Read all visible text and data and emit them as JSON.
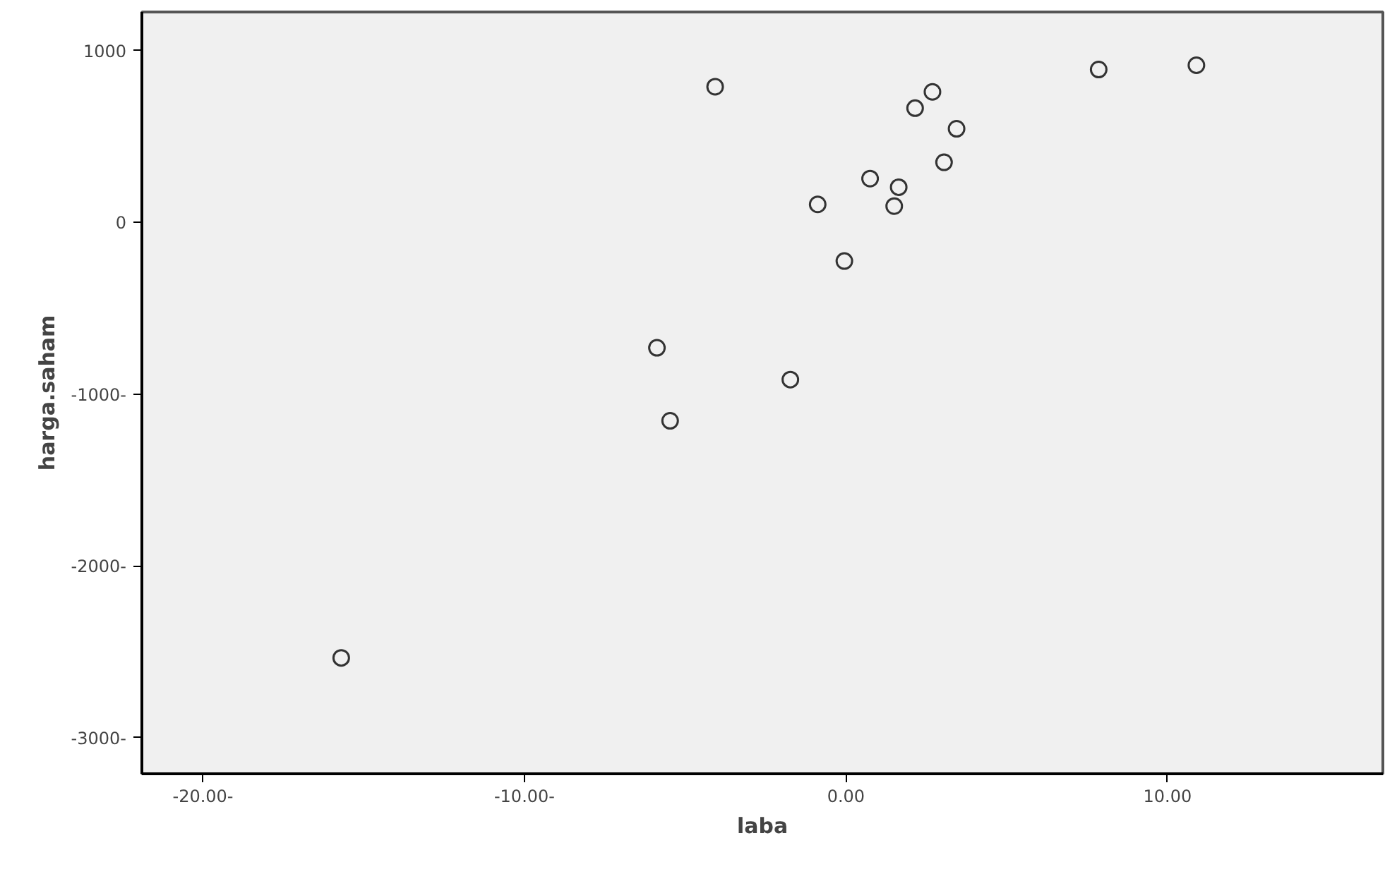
{
  "chart_data": {
    "type": "scatter",
    "xlabel": "laba",
    "ylabel": "harga.saham",
    "x": [
      -4.07,
      2.69,
      2.15,
      3.44,
      3.05,
      0.75,
      1.64,
      1.5,
      -0.88,
      -0.05,
      -5.88,
      -1.73,
      -5.47,
      7.86,
      10.9,
      -15.7
    ],
    "series": [
      {
        "color": "#333333",
        "values": [
          790,
          760,
          665,
          545,
          350,
          255,
          205,
          95,
          105,
          -225,
          -730,
          -915,
          -1155,
          890,
          915,
          -2535
        ]
      }
    ],
    "marker": "circle",
    "grid": false,
    "xlim": [
      -21.9,
      16.7
    ],
    "ylim": [
      -3210,
      1225
    ],
    "xticks": [
      {
        "value": -20,
        "label": "-20.00-"
      },
      {
        "value": -10,
        "label": "-10.00-"
      },
      {
        "value": 0,
        "label": "0.00"
      },
      {
        "value": 10,
        "label": "10.00"
      }
    ],
    "yticks": [
      {
        "value": -3000,
        "label": "-3000-"
      },
      {
        "value": -2000,
        "label": "-2000-"
      },
      {
        "value": -1000,
        "label": "-1000-"
      },
      0,
      1000
    ]
  }
}
